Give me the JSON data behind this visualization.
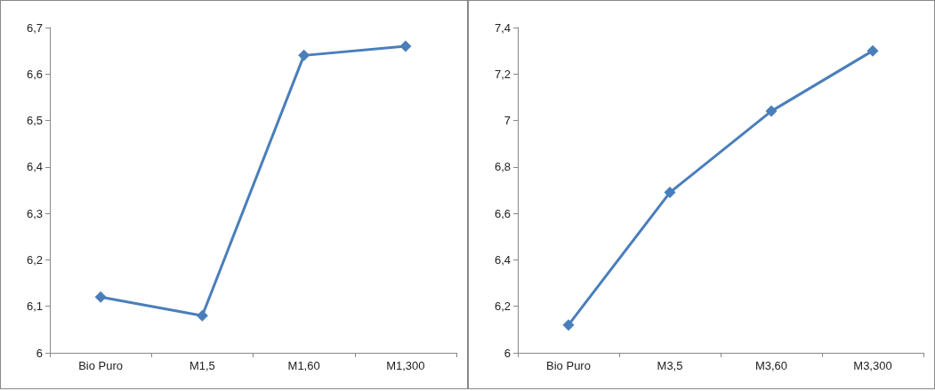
{
  "chart_data": [
    {
      "type": "line",
      "categories": [
        "Bio Puro",
        "M1,5",
        "M1,60",
        "M1,300"
      ],
      "series": [
        {
          "color": "#4a7ebb",
          "values": [
            6.12,
            6.08,
            6.64,
            6.66
          ]
        }
      ],
      "ylim": [
        6,
        6.7
      ],
      "yticks": [
        {
          "value": 6,
          "label": "6"
        },
        {
          "value": 6.1,
          "label": "6,1"
        },
        {
          "value": 6.2,
          "label": "6,2"
        },
        {
          "value": 6.3,
          "label": "6,3"
        },
        {
          "value": 6.4,
          "label": "6,4"
        },
        {
          "value": 6.5,
          "label": "6,5"
        },
        {
          "value": 6.6,
          "label": "6,6"
        },
        {
          "value": 6.7,
          "label": "6,7"
        }
      ],
      "marker": "diamond",
      "grid": false
    },
    {
      "type": "line",
      "categories": [
        "Bio Puro",
        "M3,5",
        "M3,60",
        "M3,300"
      ],
      "series": [
        {
          "color": "#4a7ebb",
          "values": [
            6.12,
            6.69,
            7.04,
            7.3
          ]
        }
      ],
      "ylim": [
        6,
        7.4
      ],
      "yticks": [
        {
          "value": 6,
          "label": "6"
        },
        {
          "value": 6.2,
          "label": "6,2"
        },
        {
          "value": 6.4,
          "label": "6,4"
        },
        {
          "value": 6.6,
          "label": "6,6"
        },
        {
          "value": 6.8,
          "label": "6,8"
        },
        {
          "value": 7,
          "label": "7"
        },
        {
          "value": 7.2,
          "label": "7,2"
        },
        {
          "value": 7.4,
          "label": "7,4"
        }
      ],
      "marker": "diamond",
      "grid": false
    }
  ]
}
